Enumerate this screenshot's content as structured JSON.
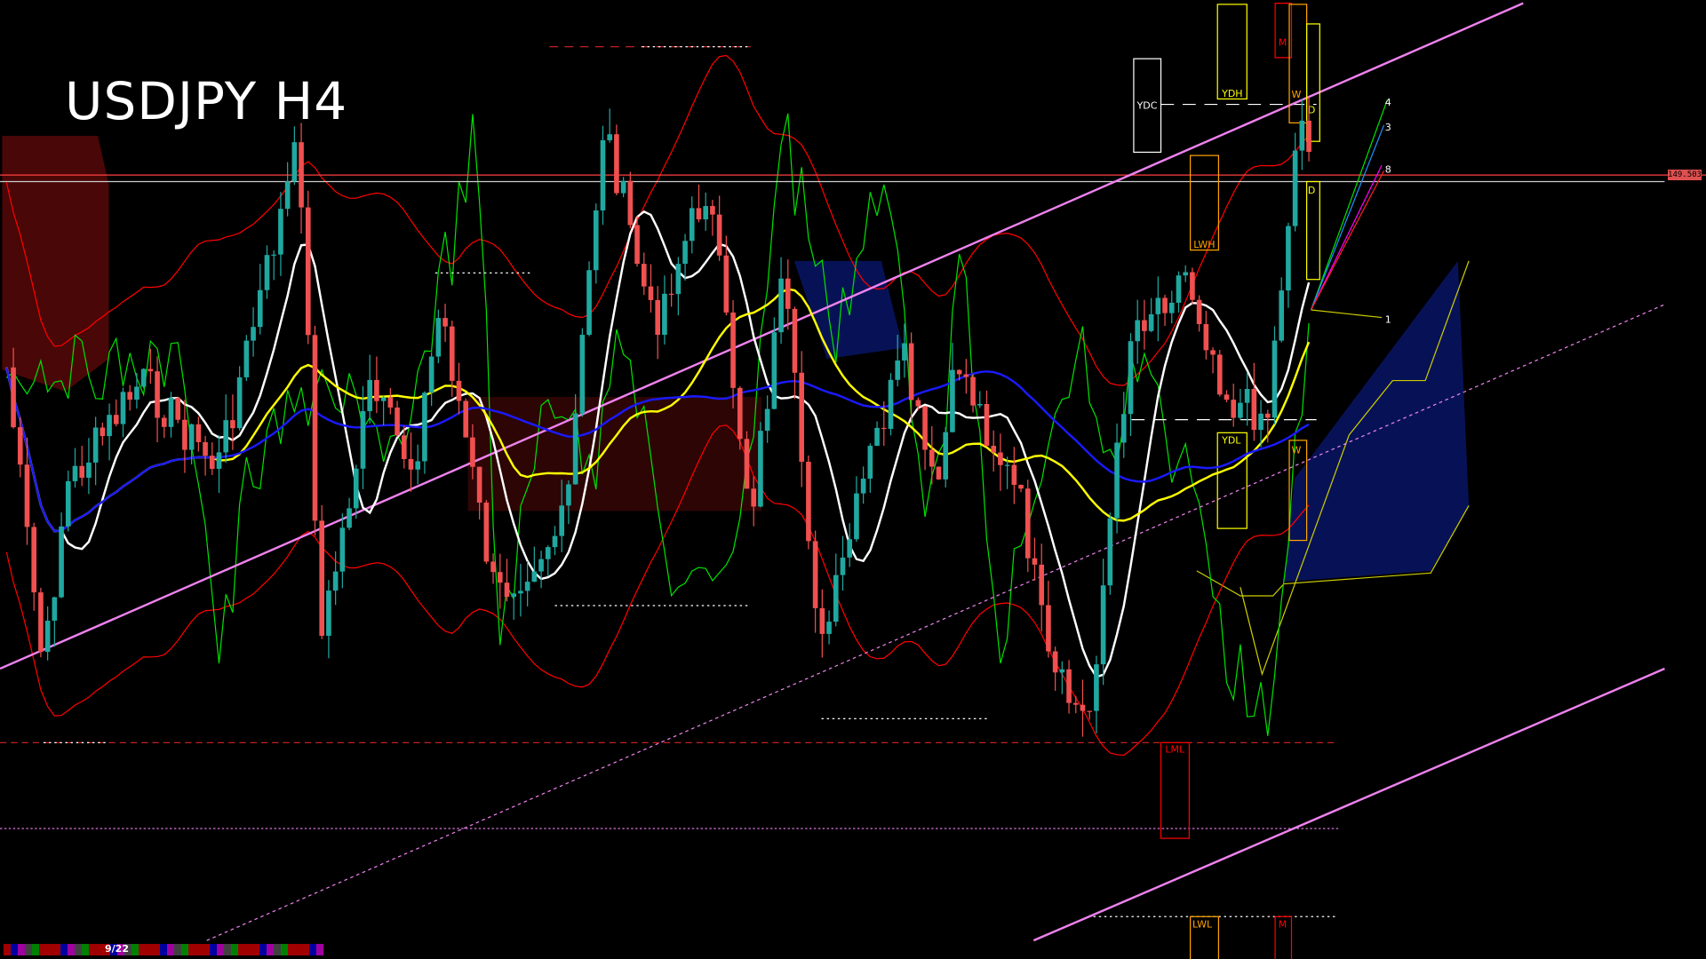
{
  "chart": {
    "symbol_timeframe": "USDJPY H4",
    "current_price_label": "149.503",
    "level_labels": {
      "ydc": "YDC",
      "ydh": "YDH",
      "ydl": "YDL",
      "m_top": "M",
      "m_bottom": "M",
      "w_top": "W",
      "w_bottom": "W",
      "d_top": "D",
      "d_bottom": "D",
      "lwh": "LWH",
      "lwl": "LWL",
      "lml": "LML"
    },
    "fan_labels": [
      "4",
      "3",
      "8",
      "1"
    ],
    "page_indicator": "9/22"
  },
  "colors": {
    "background": "#000000",
    "bull_candle": "#20a8a0",
    "bear_candle": "#f05050",
    "trendline": "#ee82ee",
    "ma_white": "#ffffff",
    "ma_yellow": "#ffff00",
    "ma_blue": "#1a1aff",
    "band_red": "#ff0000",
    "oscillator_green": "#00e000",
    "price_line": "#ff4040"
  },
  "icons": [
    "bottom-color-strip"
  ]
}
